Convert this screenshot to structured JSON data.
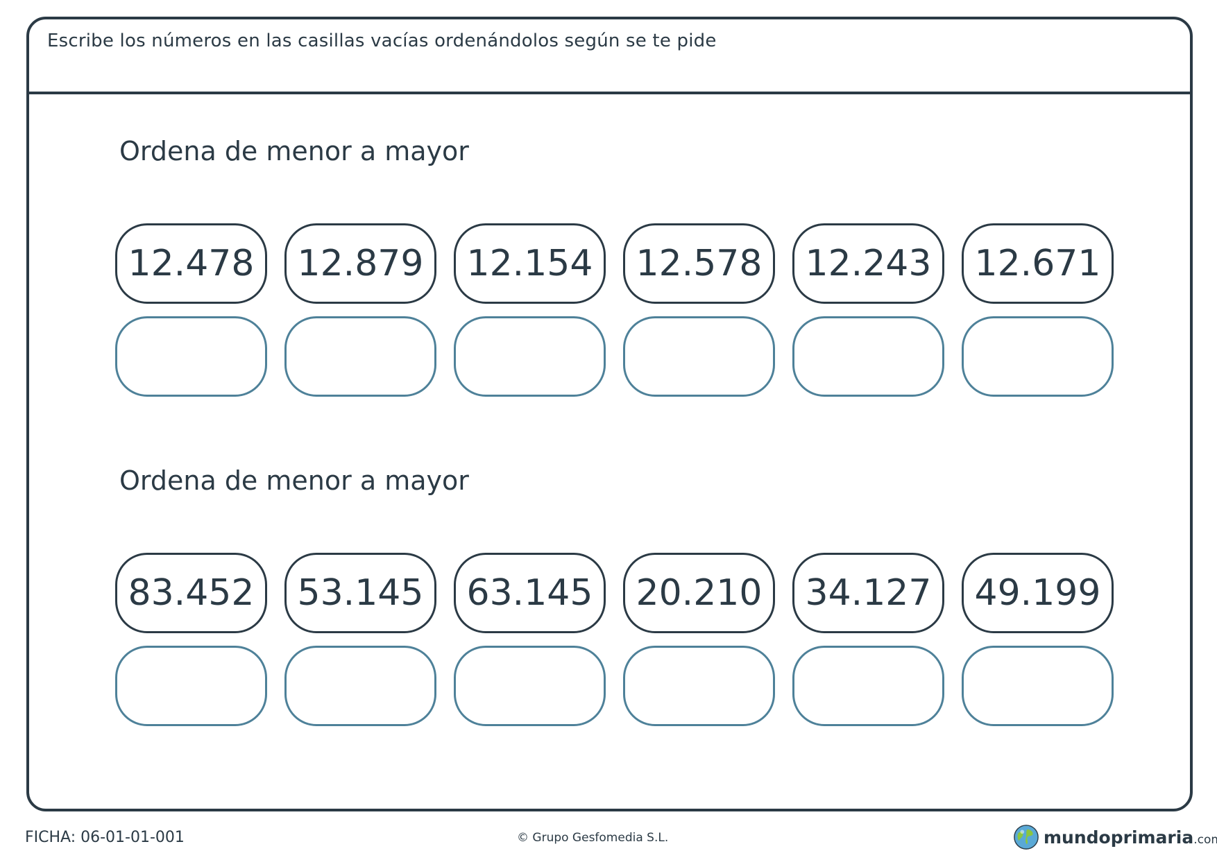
{
  "instruction": "Escribe los números en las casillas vacías ordenándolos según se te pide",
  "exercises": [
    {
      "title": "Ordena de menor a mayor",
      "numbers": [
        "12.478",
        "12.879",
        "12.154",
        "12.578",
        "12.243",
        "12.671"
      ]
    },
    {
      "title": "Ordena de menor a mayor",
      "numbers": [
        "83.452",
        "53.145",
        "63.145",
        "20.210",
        "34.127",
        "49.199"
      ]
    }
  ],
  "footer": {
    "code": "FICHA: 06-01-01-001",
    "copyright": "© Grupo Gesfomedia S.L.",
    "logo_name": "mundoprimaria",
    "logo_domain": ".com"
  },
  "colors": {
    "ink": "#2b3a45",
    "answer_border": "#4e8199"
  }
}
